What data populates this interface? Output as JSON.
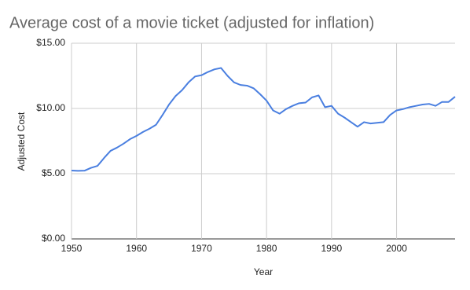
{
  "chart_data": {
    "type": "line",
    "title": "Average cost of a movie ticket (adjusted for inflation)",
    "x_label": "Year",
    "y_label": "Adjusted Cost",
    "x": [
      1950,
      1951,
      1952,
      1953,
      1954,
      1955,
      1956,
      1957,
      1958,
      1959,
      1960,
      1961,
      1962,
      1963,
      1964,
      1965,
      1966,
      1967,
      1968,
      1969,
      1970,
      1971,
      1972,
      1973,
      1974,
      1975,
      1976,
      1977,
      1978,
      1979,
      1980,
      1981,
      1982,
      1983,
      1984,
      1985,
      1986,
      1987,
      1988,
      1989,
      1990,
      1991,
      1992,
      1993,
      1994,
      1995,
      1996,
      1997,
      1998,
      1999,
      2000,
      2001,
      2002,
      2003,
      2004,
      2005,
      2006,
      2007,
      2008,
      2009
    ],
    "series": [
      {
        "name": "Adjusted Cost",
        "color": "#4a7fe0",
        "values": [
          5.24,
          5.22,
          5.23,
          5.45,
          5.6,
          6.2,
          6.75,
          7.0,
          7.3,
          7.65,
          7.9,
          8.2,
          8.45,
          8.75,
          9.5,
          10.3,
          10.95,
          11.4,
          12.0,
          12.45,
          12.55,
          12.8,
          13.0,
          13.1,
          12.5,
          12.0,
          11.8,
          11.75,
          11.55,
          11.1,
          10.6,
          9.85,
          9.6,
          9.95,
          10.2,
          10.4,
          10.45,
          10.85,
          11.0,
          10.1,
          10.2,
          9.6,
          9.3,
          8.95,
          8.6,
          8.95,
          8.85,
          8.9,
          8.95,
          9.5,
          9.85,
          9.95,
          10.1,
          10.2,
          10.3,
          10.35,
          10.2,
          10.5,
          10.5,
          10.9
        ]
      }
    ],
    "xlim": [
      1950,
      2009
    ],
    "xticks": [
      1950,
      1960,
      1970,
      1980,
      1990,
      2000
    ],
    "ylim": [
      0,
      15
    ],
    "yticks": [
      {
        "value": 0,
        "label": "$0.00"
      },
      {
        "value": 5,
        "label": "$5.00"
      },
      {
        "value": 10,
        "label": "$10.00"
      },
      {
        "value": 15,
        "label": "$15.00"
      }
    ],
    "grid": true
  }
}
